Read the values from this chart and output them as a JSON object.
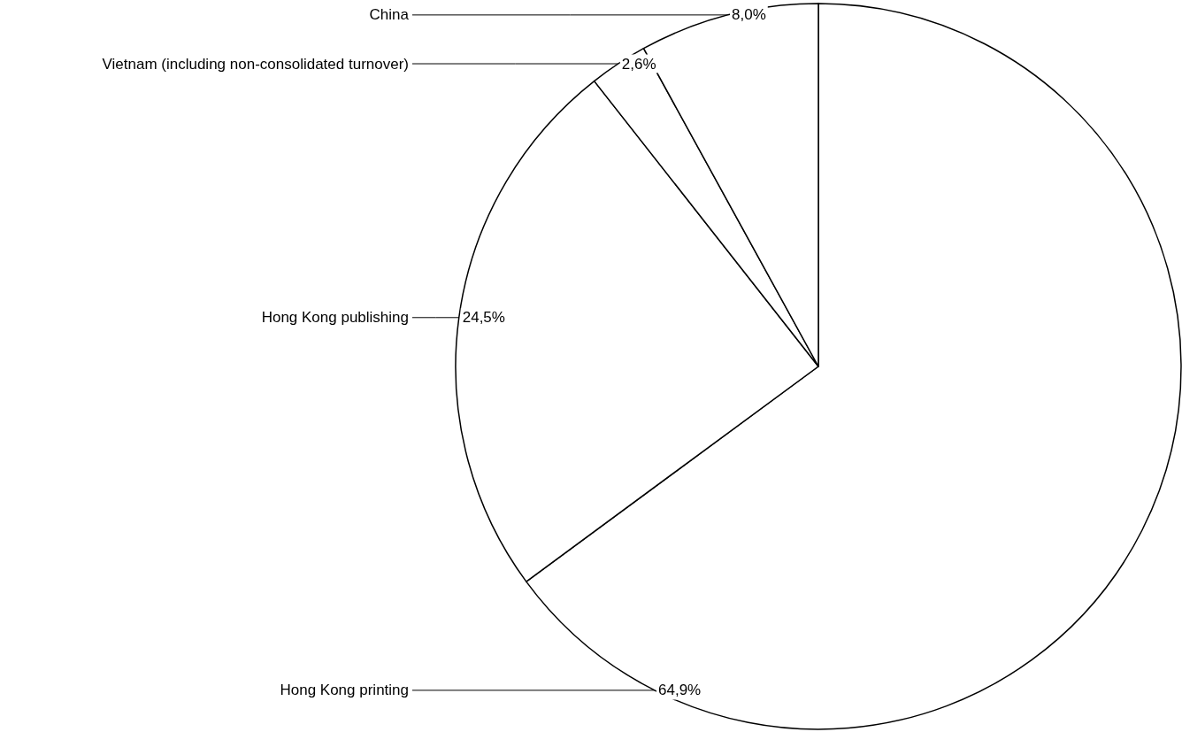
{
  "chart_data": {
    "type": "pie",
    "categories": [
      "Hong Kong printing",
      "Hong Kong publishing",
      "Vietnam (including non-consolidated turnover)",
      "China"
    ],
    "values": [
      64.9,
      24.5,
      2.6,
      8.0
    ],
    "value_labels": [
      "64,9%",
      "24,5%",
      "2,6%",
      "8,0%"
    ],
    "colors": [
      "#ffffff",
      "#ffffff",
      "#ffffff",
      "#ffffff"
    ],
    "legend": false
  }
}
